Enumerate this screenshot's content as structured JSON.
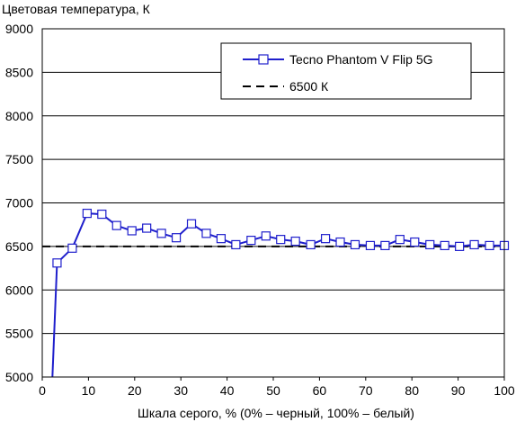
{
  "chart_data": {
    "type": "line",
    "ylabel": "Цветовая температура, К",
    "xlabel": "Шкала серого, % (0% – черный, 100% – белый)",
    "xlim": [
      0,
      100
    ],
    "ylim": [
      5000,
      9000
    ],
    "x_ticks": [
      0,
      10,
      20,
      30,
      40,
      50,
      60,
      70,
      80,
      90,
      100
    ],
    "y_ticks": [
      5000,
      5500,
      6000,
      6500,
      7000,
      7500,
      8000,
      8500,
      9000
    ],
    "grid": "horizontal",
    "legend_position": "top-right",
    "series": [
      {
        "name": "Tecno Phantom V Flip 5G",
        "color": "#1f1fcc",
        "marker": "open-square",
        "x": [
          3.2,
          6.5,
          9.7,
          12.9,
          16.1,
          19.4,
          22.6,
          25.8,
          29.0,
          32.3,
          35.5,
          38.7,
          41.9,
          45.2,
          48.4,
          51.6,
          54.8,
          58.1,
          61.3,
          64.5,
          67.7,
          71.0,
          74.2,
          77.4,
          80.6,
          83.9,
          87.1,
          90.3,
          93.5,
          96.8,
          100
        ],
        "y": [
          6310,
          6480,
          6880,
          6870,
          6740,
          6680,
          6710,
          6650,
          6600,
          6760,
          6650,
          6590,
          6520,
          6570,
          6620,
          6580,
          6560,
          6520,
          6590,
          6550,
          6520,
          6510,
          6510,
          6580,
          6550,
          6520,
          6510,
          6500,
          6520,
          6510,
          6510
        ],
        "lead_in": {
          "x": [
            2.2,
            3.2
          ],
          "y": [
            5000,
            6310
          ]
        }
      },
      {
        "name": "6500 К",
        "color": "#000000",
        "style": "dashed",
        "x": [
          0,
          100
        ],
        "y": [
          6500,
          6500
        ]
      }
    ]
  }
}
